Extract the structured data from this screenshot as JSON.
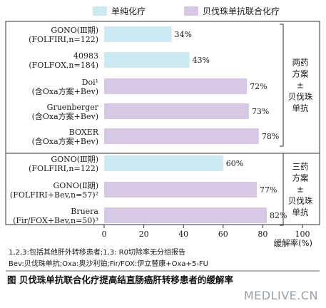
{
  "chart_data": {
    "type": "bar",
    "orientation": "horizontal",
    "legend": [
      {
        "name": "单纯化疗",
        "color": "#cce8f0"
      },
      {
        "name": "贝伐珠单抗联合化疗",
        "color": "#d7c9e3"
      }
    ],
    "categories": [
      [
        "GONO(Ⅲ期)",
        "(FOLFIRI,n=122)"
      ],
      [
        "40983",
        "(FOLFOX,n=184)"
      ],
      [
        "Doi¹",
        "(含Oxa方案+Bev)"
      ],
      [
        "Gruenberger",
        "(含Oxa方案+Bev)"
      ],
      [
        "BOXER",
        "(含Oxa方案+Bev)"
      ],
      [
        "GONO(Ⅲ期)",
        "(FOLFIRI,n=122)"
      ],
      [
        "GONO(Ⅱ期)",
        "(FOLFIRI+Bev,n=57)²"
      ],
      [
        "Bruera",
        "(Fir/FOX+Bev,n=50)³"
      ]
    ],
    "values": [
      34,
      43,
      72,
      73,
      78,
      60,
      77,
      82
    ],
    "value_labels": [
      "34%",
      "43%",
      "72%",
      "73%",
      "78%",
      "60%",
      "77%",
      "82%"
    ],
    "series_index": [
      0,
      0,
      1,
      1,
      1,
      0,
      1,
      1
    ],
    "xlim": [
      0,
      100
    ],
    "xticks": [
      "0",
      "20",
      "40",
      "60",
      "80",
      "100"
    ],
    "xlabel": "缓解率(%)",
    "groups": [
      {
        "label_lines": [
          "两药",
          "方案",
          "±",
          "贝伐珠",
          "单抗"
        ],
        "rows": [
          0,
          4
        ]
      },
      {
        "label_lines": [
          "三药",
          "方案",
          "±",
          "贝伐珠",
          "单抗"
        ],
        "rows": [
          5,
          7
        ]
      }
    ]
  },
  "notes": [
    "1,2,3:包括其他肝外转移患者;1,3: R0切除率无分组报告",
    "Bev:贝伐珠单抗;Oxa:奥沙利铂;Fir/FOX:伊立替康+Oxa+5-FU"
  ],
  "caption": "图 贝伐珠单抗联合化疗提高结直肠癌肝转移患者的缓解率",
  "watermark": "MEDLIVE.CN"
}
